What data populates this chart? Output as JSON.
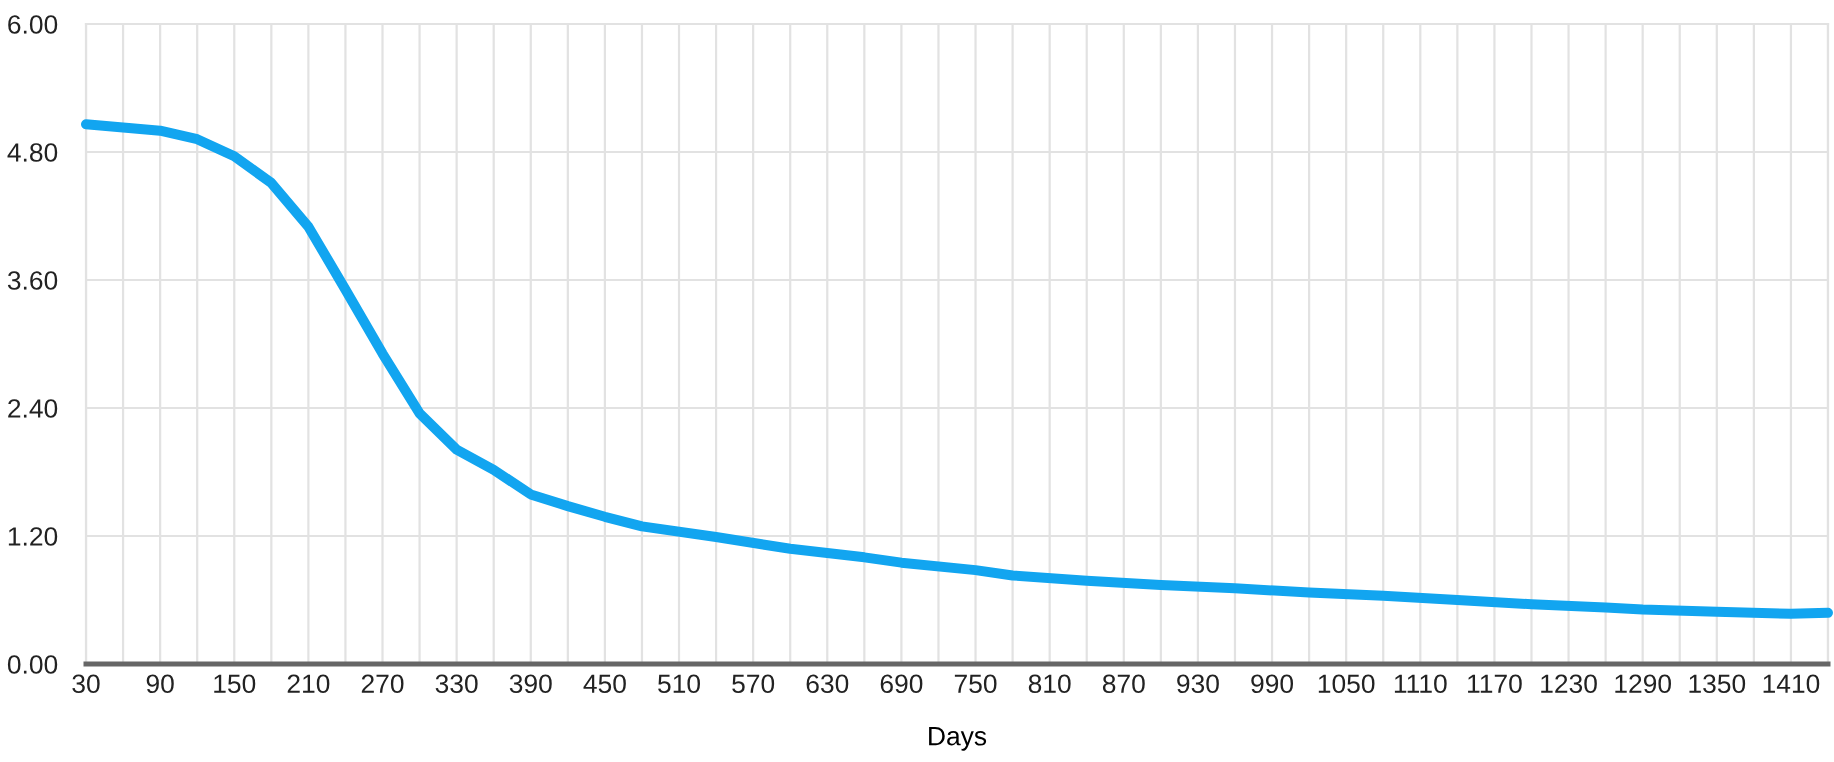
{
  "chart_data": {
    "type": "line",
    "xlabel": "Days",
    "xlim": [
      30,
      1440
    ],
    "xticks": [
      30,
      {
        "value": 60,
        "label": null
      },
      90,
      {
        "value": 120,
        "label": null
      },
      150,
      {
        "value": 180,
        "label": null
      },
      210,
      {
        "value": 240,
        "label": null
      },
      270,
      {
        "value": 300,
        "label": null
      },
      330,
      {
        "value": 360,
        "label": null
      },
      390,
      {
        "value": 420,
        "label": null
      },
      450,
      {
        "value": 480,
        "label": null
      },
      510,
      {
        "value": 540,
        "label": null
      },
      570,
      {
        "value": 600,
        "label": null
      },
      630,
      {
        "value": 660,
        "label": null
      },
      690,
      {
        "value": 720,
        "label": null
      },
      750,
      {
        "value": 780,
        "label": null
      },
      810,
      {
        "value": 840,
        "label": null
      },
      870,
      {
        "value": 900,
        "label": null
      },
      930,
      {
        "value": 960,
        "label": null
      },
      990,
      {
        "value": 1020,
        "label": null
      },
      1050,
      {
        "value": 1080,
        "label": null
      },
      1110,
      {
        "value": 1140,
        "label": null
      },
      1170,
      {
        "value": 1200,
        "label": null
      },
      1230,
      {
        "value": 1260,
        "label": null
      },
      1290,
      {
        "value": 1320,
        "label": null
      },
      1350,
      {
        "value": 1380,
        "label": null
      },
      1410,
      {
        "value": 1440,
        "label": null
      }
    ],
    "ylim": [
      0,
      6
    ],
    "yticks": [
      {
        "value": 0,
        "label": "0.00"
      },
      {
        "value": 1.2,
        "label": "1.20"
      },
      {
        "value": 2.4,
        "label": "2.40"
      },
      {
        "value": 3.6,
        "label": "3.60"
      },
      {
        "value": 4.8,
        "label": "4.80"
      },
      {
        "value": 6,
        "label": "6.00"
      }
    ],
    "grid": true,
    "marker": "none",
    "line_style": "solid",
    "series": [
      {
        "color": "#12a5f0",
        "x": [
          30,
          90,
          120,
          150,
          180,
          210,
          240,
          270,
          300,
          330,
          360,
          390,
          420,
          450,
          480,
          540,
          600,
          660,
          690,
          750,
          780,
          840,
          900,
          960,
          1020,
          1080,
          1140,
          1200,
          1260,
          1290,
          1350,
          1410,
          1440
        ],
        "values": [
          5.06,
          5.0,
          4.92,
          4.76,
          4.51,
          4.1,
          3.51,
          2.91,
          2.35,
          2.01,
          1.82,
          1.59,
          1.48,
          1.38,
          1.29,
          1.19,
          1.08,
          1.0,
          0.95,
          0.88,
          0.83,
          0.78,
          0.74,
          0.71,
          0.67,
          0.64,
          0.6,
          0.56,
          0.53,
          0.51,
          0.49,
          0.47,
          0.48
        ]
      }
    ]
  }
}
